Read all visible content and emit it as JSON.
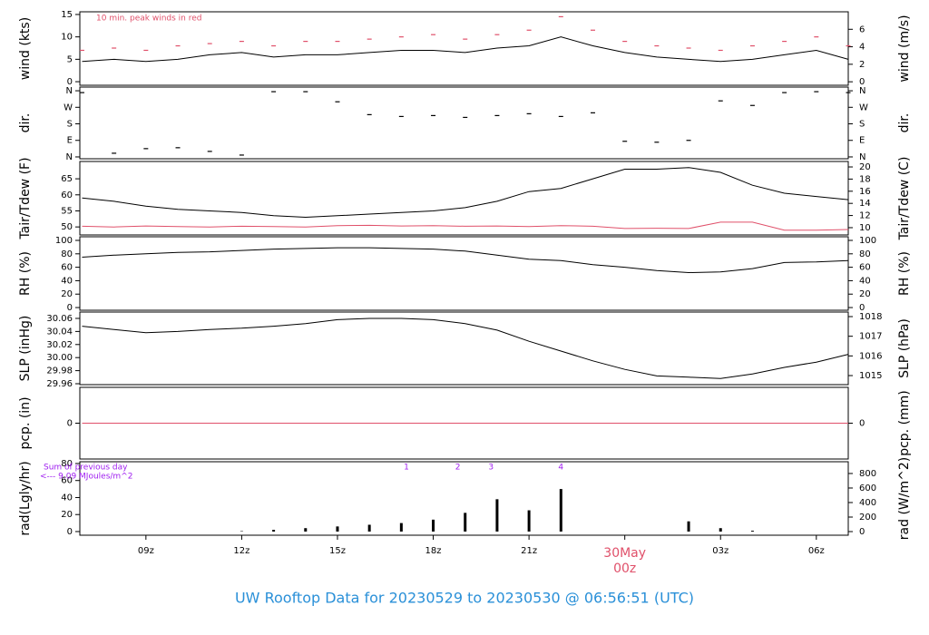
{
  "footer": {
    "title": "UW Rooftop Data for 20230529  to  20230530 @ 06:56:51  (UTC)"
  },
  "chart_data": [
    {
      "type": "line",
      "ylabel": "wind (kts)",
      "y2label": "wind (m/s)",
      "annotation": "10 min. peak winds in red",
      "x": [
        7,
        8,
        9,
        10,
        11,
        12,
        13,
        14,
        15,
        16,
        17,
        18,
        19,
        20,
        21,
        22,
        23,
        24,
        25,
        26,
        27,
        28,
        29,
        30,
        31
      ],
      "xlim": [
        6.93,
        31.0
      ],
      "ylim": [
        -0.8,
        15.6
      ],
      "yticks": [
        0,
        5,
        10,
        15
      ],
      "y2lim": [
        -0.4,
        8.0
      ],
      "y2ticks": [
        0,
        2,
        4,
        6
      ],
      "series": [
        {
          "name": "wind",
          "color": "#000000",
          "mode": "lines",
          "values": [
            4.5,
            5,
            4.5,
            5,
            6,
            6.5,
            5.5,
            6,
            6,
            6.5,
            7,
            7,
            6.5,
            7.5,
            8,
            10,
            8,
            6.5,
            5.5,
            5,
            4.5,
            5,
            6,
            7,
            5
          ]
        },
        {
          "name": "peak",
          "color": "#e0506a",
          "mode": "markers",
          "values": [
            7,
            7.5,
            7,
            8,
            8.5,
            9,
            8,
            9,
            9,
            9.5,
            10,
            10.5,
            9.5,
            10.5,
            11.5,
            14.5,
            11.5,
            9,
            8,
            7.5,
            7,
            8,
            9,
            10,
            8
          ]
        }
      ]
    },
    {
      "type": "scatter",
      "ylabel": "dir.",
      "y2label": "dir.",
      "x": [
        7,
        8,
        9,
        10,
        11,
        12,
        13,
        14,
        15,
        16,
        17,
        18,
        19,
        20,
        21,
        22,
        23,
        24,
        25,
        26,
        27,
        28,
        29,
        30,
        31
      ],
      "xlim": [
        6.93,
        31.0
      ],
      "ylim": [
        -10,
        380
      ],
      "yticks": [
        {
          "value": 0,
          "label": "N"
        },
        {
          "value": 90,
          "label": "E"
        },
        {
          "value": 180,
          "label": "S"
        },
        {
          "value": 270,
          "label": "W"
        },
        {
          "value": 360,
          "label": "N"
        }
      ],
      "y2lim": [
        -10,
        380
      ],
      "y2ticks": [
        {
          "value": 0,
          "label": "N"
        },
        {
          "value": 90,
          "label": "E"
        },
        {
          "value": 180,
          "label": "S"
        },
        {
          "value": 270,
          "label": "W"
        },
        {
          "value": 360,
          "label": "N"
        }
      ],
      "series": [
        {
          "name": "dir",
          "color": "#000000",
          "values": [
            350,
            20,
            45,
            50,
            30,
            10,
            355,
            355,
            300,
            230,
            220,
            225,
            215,
            225,
            235,
            220,
            240,
            85,
            80,
            90,
            305,
            280,
            350,
            355,
            350
          ]
        }
      ]
    },
    {
      "type": "line",
      "ylabel": "Tair/Tdew (F)",
      "y2label": "Tair/Tdew (C)",
      "x": [
        7,
        8,
        9,
        10,
        11,
        12,
        13,
        14,
        15,
        16,
        17,
        18,
        19,
        20,
        21,
        22,
        23,
        24,
        25,
        26,
        27,
        28,
        29,
        30,
        31
      ],
      "xlim": [
        6.93,
        31.0
      ],
      "ylim": [
        47.5,
        70.4
      ],
      "yticks": [
        50,
        55,
        60,
        65
      ],
      "y2lim": [
        8.8,
        20.9
      ],
      "y2ticks": [
        10,
        12,
        14,
        16,
        18,
        20
      ],
      "series": [
        {
          "name": "Tair",
          "color": "#000000",
          "mode": "lines",
          "values": [
            59,
            58,
            56.5,
            55.5,
            55,
            54.5,
            53.5,
            53,
            53.5,
            54,
            54.5,
            55,
            56,
            58,
            61,
            62,
            65,
            68,
            68,
            68.5,
            67,
            63,
            60.5,
            59.5,
            58.5
          ]
        },
        {
          "name": "Tdew",
          "color": "#e0506a",
          "mode": "lines",
          "values": [
            50.2,
            50,
            50.3,
            50.1,
            50,
            50.2,
            50.1,
            50,
            50.4,
            50.5,
            50.3,
            50.4,
            50.2,
            50.3,
            50.1,
            50.4,
            50.2,
            49.5,
            49.6,
            49.5,
            51.5,
            51.5,
            49,
            49,
            49.2
          ]
        }
      ]
    },
    {
      "type": "line",
      "ylabel": "RH (%)",
      "y2label": "RH (%)",
      "x": [
        7,
        8,
        9,
        10,
        11,
        12,
        13,
        14,
        15,
        16,
        17,
        18,
        19,
        20,
        21,
        22,
        23,
        24,
        25,
        26,
        27,
        28,
        29,
        30,
        31
      ],
      "xlim": [
        6.93,
        31.0
      ],
      "ylim": [
        -4,
        105.4
      ],
      "yticks": [
        0,
        20,
        40,
        60,
        80,
        100
      ],
      "y2lim": [
        -4,
        105.4
      ],
      "y2ticks": [
        0,
        20,
        40,
        60,
        80,
        100
      ],
      "series": [
        {
          "name": "RH",
          "color": "#000000",
          "mode": "lines",
          "values": [
            75,
            78,
            80,
            82,
            83,
            85,
            87,
            88,
            89,
            89,
            88,
            87,
            84,
            78,
            72,
            70,
            64,
            60,
            55,
            52,
            53,
            58,
            67,
            68,
            70
          ]
        }
      ]
    },
    {
      "type": "line",
      "ylabel": "SLP (inHg)",
      "y2label": "SLP (hPa)",
      "x": [
        7,
        8,
        9,
        10,
        11,
        12,
        13,
        14,
        15,
        16,
        17,
        18,
        19,
        20,
        21,
        22,
        23,
        24,
        25,
        26,
        27,
        28,
        29,
        30,
        31
      ],
      "xlim": [
        6.93,
        31.0
      ],
      "ylim": [
        29.9586,
        30.0697
      ],
      "yticks": [
        29.96,
        29.98,
        {
          "value": 30,
          "label": "30.00"
        },
        30.02,
        30.04,
        30.06
      ],
      "y2lim": [
        1014.54,
        1018.23
      ],
      "y2ticks": [
        1015,
        1016,
        1017,
        1018
      ],
      "series": [
        {
          "name": "SLP",
          "color": "#000000",
          "mode": "lines",
          "values": [
            30.048,
            30.043,
            30.038,
            30.04,
            30.043,
            30.045,
            30.048,
            30.052,
            30.058,
            30.06,
            30.06,
            30.058,
            30.052,
            30.042,
            30.025,
            30.01,
            29.995,
            29.982,
            29.972,
            29.97,
            29.968,
            29.975,
            29.985,
            29.993,
            30.005
          ]
        }
      ]
    },
    {
      "type": "line",
      "ylabel": "pcp. (in)",
      "y2label": "pcp. (mm)",
      "x": [
        7,
        8,
        9,
        10,
        11,
        12,
        13,
        14,
        15,
        16,
        17,
        18,
        19,
        20,
        21,
        22,
        23,
        24,
        25,
        26,
        27,
        28,
        29,
        30,
        31
      ],
      "xlim": [
        6.93,
        31.0
      ],
      "ylim": [
        -1,
        1
      ],
      "yticks": [
        0
      ],
      "y2lim": [
        -1,
        1
      ],
      "y2ticks": [
        0
      ],
      "series": [
        {
          "name": "pcp",
          "color": "#e0506a",
          "mode": "lines",
          "values": [
            0,
            0,
            0,
            0,
            0,
            0,
            0,
            0,
            0,
            0,
            0,
            0,
            0,
            0,
            0,
            0,
            0,
            0,
            0,
            0,
            0,
            0,
            0,
            0,
            0
          ]
        }
      ]
    },
    {
      "type": "bar",
      "ylabel": "rad(Lgly/hr)",
      "y2label": "rad (W/m^2)",
      "notes": [
        "Sum of previous day",
        "<--- 9.09 MJoules/m^2"
      ],
      "annotations": [
        {
          "text": "1",
          "x": 17.16
        },
        {
          "text": "2",
          "x": 18.77
        },
        {
          "text": "3",
          "x": 19.81
        },
        {
          "text": "4",
          "x": 22.0
        }
      ],
      "date_label": {
        "text": "30May",
        "x": 24
      },
      "x": [
        7,
        8,
        9,
        10,
        11,
        12,
        13,
        14,
        15,
        16,
        17,
        18,
        19,
        20,
        21,
        22,
        23,
        24,
        25,
        26,
        27,
        28,
        29,
        30,
        31
      ],
      "xlim": [
        6.93,
        31.0
      ],
      "ylim": [
        -4.3,
        82.1
      ],
      "yticks": [
        0,
        20,
        40,
        60,
        80
      ],
      "y2lim": [
        -50,
        962
      ],
      "y2ticks": [
        0,
        200,
        400,
        600,
        800
      ],
      "xticks": [
        {
          "value": 9,
          "label": "09z"
        },
        {
          "value": 12,
          "label": "12z"
        },
        {
          "value": 15,
          "label": "15z"
        },
        {
          "value": 18,
          "label": "18z"
        },
        {
          "value": 21,
          "label": "21z"
        },
        {
          "value": 24,
          "label": "00z"
        },
        {
          "value": 27,
          "label": "03z"
        },
        {
          "value": 30,
          "label": "06z"
        }
      ],
      "series": [
        {
          "name": "rad",
          "color": "#000000",
          "values": [
            0,
            0,
            0,
            0,
            0,
            0.5,
            2,
            4,
            6,
            8,
            10,
            14,
            22,
            38,
            25,
            50,
            0,
            0,
            0,
            12,
            4,
            1,
            0,
            0,
            0
          ]
        }
      ]
    }
  ]
}
